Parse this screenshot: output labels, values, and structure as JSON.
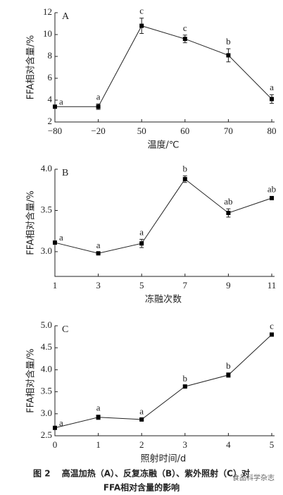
{
  "chart_data": [
    {
      "type": "line",
      "title": "A",
      "categories": [
        "−80",
        "−20",
        "50",
        "60",
        "70",
        "80"
      ],
      "values": [
        3.4,
        3.4,
        10.8,
        9.6,
        8.1,
        4.1
      ],
      "errors": [
        0.1,
        0.25,
        0.7,
        0.35,
        0.6,
        0.4
      ],
      "annotations": [
        "a",
        "a",
        "c",
        "c",
        "b",
        "a"
      ],
      "color": "#000000",
      "ylim": [
        2,
        12
      ],
      "yticks": [
        2,
        4,
        6,
        8,
        10,
        12
      ],
      "xlabel": "温度/℃",
      "ylabel": "FFA相对含量/%"
    },
    {
      "type": "line",
      "title": "B",
      "x": [
        1,
        3,
        5,
        7,
        9,
        11
      ],
      "values": [
        3.11,
        2.98,
        3.1,
        3.88,
        3.47,
        3.65
      ],
      "errors": [
        0.02,
        0.01,
        0.05,
        0.04,
        0.05,
        0.02
      ],
      "annotations": [
        "a",
        "a",
        "a",
        "b",
        "ab",
        "ab"
      ],
      "color": "#000000",
      "xlim": [
        1,
        11
      ],
      "xticks": [
        1,
        3,
        5,
        7,
        9,
        11
      ],
      "ylim": [
        2.7,
        4.0
      ],
      "yticks": [
        {
          "value": 3.0,
          "label": "3.0"
        },
        3.5,
        {
          "value": 4.0,
          "label": "4.0"
        }
      ],
      "xlabel": "冻融次数",
      "ylabel": "FFA相对含量/%"
    },
    {
      "type": "line",
      "title": "C",
      "x": [
        0,
        1,
        2,
        3,
        4,
        5
      ],
      "values": [
        2.68,
        2.92,
        2.87,
        3.62,
        3.88,
        4.8
      ],
      "errors": [
        0.02,
        0.05,
        0.02,
        0.02,
        0.05,
        0.03
      ],
      "annotations": [
        "a",
        "a",
        "a",
        "b",
        "b",
        "c"
      ],
      "color": "#000000",
      "xlim": [
        0,
        5
      ],
      "xticks": [
        0,
        1,
        2,
        3,
        4,
        5
      ],
      "ylim": [
        2.5,
        5.0
      ],
      "yticks": [
        2.5,
        {
          "value": 3.0,
          "label": "3.0"
        },
        3.5,
        {
          "value": 4.0,
          "label": "4.0"
        },
        4.5,
        {
          "value": 5.0,
          "label": "5.0"
        }
      ],
      "xlabel": "照射时间/d",
      "ylabel": "FFA相对含量/%"
    }
  ],
  "caption": {
    "line1": "图 2　 高温加热（A）、反复冻融（B）、紫外照射（C）对",
    "line2": "FFA相对含量的影响"
  },
  "watermark": "食品科学杂志"
}
